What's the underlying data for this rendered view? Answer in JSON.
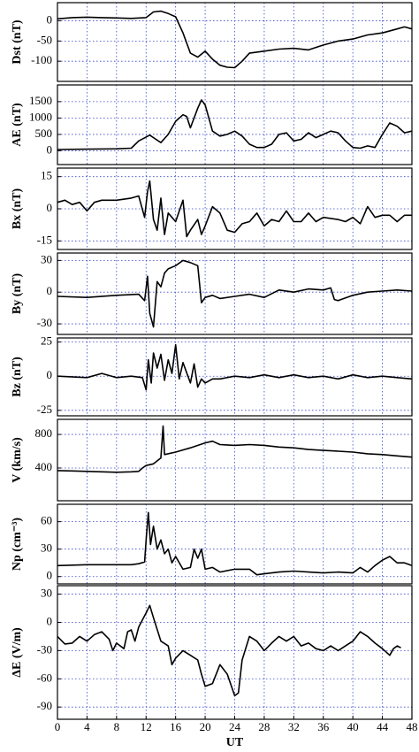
{
  "chart_data": [
    {
      "type": "line",
      "y_label": "Dst (nT)",
      "color": "#000000",
      "grid": true,
      "x": [
        0,
        2,
        4,
        6,
        8,
        10,
        12,
        13,
        14,
        15,
        16,
        17,
        18,
        19,
        20,
        21,
        22,
        23,
        24,
        25,
        26,
        28,
        30,
        32,
        34,
        36,
        38,
        40,
        42,
        44,
        46,
        47,
        48
      ],
      "values": [
        5,
        8,
        9,
        8,
        7,
        6,
        8,
        22,
        24,
        18,
        10,
        -30,
        -80,
        -90,
        -75,
        -95,
        -110,
        -115,
        -116,
        -100,
        -80,
        -75,
        -70,
        -68,
        -72,
        -60,
        -50,
        -45,
        -35,
        -30,
        -20,
        -15,
        -20
      ],
      "ylim": [
        -150,
        45
      ],
      "yticks": [
        0,
        -50,
        -100
      ]
    },
    {
      "type": "line",
      "y_label": "AE (nT)",
      "color": "#000000",
      "grid": true,
      "x": [
        0,
        4,
        8,
        10,
        11,
        12,
        12.5,
        13,
        14,
        15,
        16,
        17,
        17.5,
        18,
        19,
        19.5,
        20,
        21,
        22,
        23,
        24,
        25,
        26,
        27,
        28,
        29,
        30,
        31,
        32,
        33,
        34,
        35,
        36,
        37,
        38,
        39,
        40,
        41,
        42,
        43,
        44,
        45,
        46,
        47,
        48
      ],
      "values": [
        40,
        50,
        60,
        80,
        300,
        420,
        480,
        400,
        250,
        500,
        900,
        1100,
        1050,
        700,
        1300,
        1550,
        1400,
        600,
        450,
        500,
        600,
        450,
        200,
        100,
        100,
        200,
        500,
        550,
        300,
        350,
        550,
        400,
        500,
        600,
        550,
        300,
        100,
        80,
        150,
        100,
        500,
        850,
        750,
        550,
        600
      ],
      "ylim": [
        -420,
        2010
      ],
      "yticks": [
        0,
        500,
        1000,
        1500
      ]
    },
    {
      "type": "line",
      "y_label": "Bx (nT)",
      "color": "#000000",
      "grid": true,
      "x": [
        0,
        1,
        2,
        3,
        4,
        5,
        6,
        8,
        10,
        11,
        11.8,
        12.2,
        12.5,
        13,
        13.5,
        14,
        14.5,
        15,
        16,
        17,
        17.5,
        18,
        19,
        19.5,
        20,
        21,
        22,
        23,
        24,
        25,
        26,
        27,
        28,
        29,
        30,
        31,
        32,
        33,
        34,
        35,
        36,
        38,
        39,
        40,
        41,
        42,
        43,
        44,
        45,
        46,
        47,
        48
      ],
      "values": [
        3,
        4,
        2,
        3,
        -1,
        3,
        4,
        4,
        5,
        6,
        -4,
        8,
        13,
        -5,
        -10,
        5,
        -12,
        -2,
        -6,
        4,
        -13,
        -10,
        -5,
        -12,
        -8,
        1,
        -2,
        -10,
        -11,
        -7,
        -6,
        -2,
        -8,
        -5,
        -6,
        -1,
        -6,
        -6,
        -2,
        -6,
        -4,
        -5,
        -6,
        -4,
        -7,
        1,
        -4,
        -3,
        -3,
        -6,
        -3,
        -3
      ],
      "ylim": [
        -19,
        19
      ],
      "yticks": [
        15,
        0,
        -15
      ]
    },
    {
      "type": "line",
      "y_label": "By (nT)",
      "color": "#000000",
      "grid": true,
      "x": [
        0,
        4,
        8,
        11,
        11.8,
        12.2,
        12.5,
        13,
        13.5,
        14,
        14.5,
        15,
        16,
        17,
        18,
        19,
        19.5,
        20,
        21,
        22,
        24,
        26,
        28,
        30,
        32,
        34,
        36,
        37,
        37.5,
        38,
        40,
        42,
        44,
        46,
        48
      ],
      "values": [
        -4,
        -5,
        -3,
        -2,
        -8,
        15,
        -20,
        -33,
        10,
        5,
        18,
        22,
        25,
        30,
        28,
        25,
        -10,
        -5,
        -3,
        -6,
        -4,
        -2,
        -5,
        2,
        0,
        3,
        2,
        4,
        -7,
        -8,
        -3,
        0,
        1,
        2,
        1
      ],
      "ylim": [
        -40,
        37
      ],
      "yticks": [
        30,
        0,
        -30
      ]
    },
    {
      "type": "line",
      "y_label": "Bz (nT)",
      "color": "#000000",
      "grid": true,
      "x": [
        0,
        4,
        6,
        8,
        10,
        11.5,
        12,
        12.3,
        12.7,
        13,
        13.5,
        14,
        14.5,
        15,
        15.5,
        16,
        16.5,
        17,
        18,
        18.5,
        19,
        19.5,
        20,
        21,
        22,
        24,
        26,
        28,
        30,
        32,
        34,
        36,
        38,
        40,
        42,
        44,
        46,
        48
      ],
      "values": [
        0,
        -1,
        2,
        -1,
        0,
        -1,
        -10,
        12,
        -5,
        17,
        6,
        16,
        -3,
        12,
        2,
        23,
        -2,
        10,
        -5,
        9,
        -8,
        -2,
        -5,
        -2,
        -2,
        0,
        -1,
        1,
        -1,
        1,
        -1,
        0,
        -2,
        1,
        -1,
        0,
        -1,
        -2
      ],
      "ylim": [
        -29,
        28
      ],
      "yticks": [
        25,
        0,
        -25
      ]
    },
    {
      "type": "line",
      "y_label": "V (km/s)",
      "color": "#000000",
      "grid": true,
      "x": [
        0,
        2,
        4,
        6,
        8,
        10,
        11,
        11.5,
        12,
        13,
        14,
        14.3,
        14.5,
        16,
        18,
        20,
        21,
        22,
        24,
        26,
        28,
        30,
        32,
        34,
        36,
        38,
        40,
        42,
        44,
        46,
        48
      ],
      "values": [
        370,
        365,
        360,
        355,
        350,
        355,
        360,
        400,
        430,
        450,
        520,
        900,
        560,
        590,
        640,
        700,
        720,
        680,
        670,
        680,
        670,
        650,
        640,
        620,
        610,
        600,
        590,
        570,
        560,
        545,
        530
      ],
      "ylim": [
        10,
        980
      ],
      "yticks": [
        400,
        800
      ]
    },
    {
      "type": "line",
      "y_label": "Np (cm⁻³)",
      "color": "#000000",
      "grid": true,
      "x": [
        0,
        4,
        8,
        10,
        11,
        11.8,
        12,
        12.3,
        12.6,
        13,
        13.5,
        14,
        14.5,
        15,
        15.5,
        16,
        17,
        18,
        18.5,
        19,
        19.5,
        20,
        21,
        22,
        24,
        26,
        27,
        28,
        30,
        32,
        34,
        36,
        38,
        40,
        41,
        42,
        43,
        44,
        45,
        46,
        47,
        48
      ],
      "values": [
        12,
        13,
        13,
        13,
        14,
        16,
        40,
        70,
        35,
        55,
        30,
        40,
        25,
        30,
        15,
        22,
        8,
        10,
        30,
        20,
        30,
        8,
        10,
        5,
        8,
        8,
        2,
        3,
        5,
        6,
        5,
        4,
        5,
        4,
        10,
        5,
        12,
        18,
        22,
        15,
        15,
        12
      ],
      "ylim": [
        -8,
        79
      ],
      "yticks": [
        60,
        30,
        0
      ]
    },
    {
      "type": "line",
      "y_label": "ΔE (V/m)",
      "x_label": "UT",
      "color": "#000000",
      "grid": true,
      "x": [
        0,
        1,
        2,
        3,
        4,
        5,
        6,
        7,
        7.5,
        8,
        9,
        9.5,
        10,
        10.5,
        11,
        12,
        12.5,
        13,
        14,
        15,
        15.5,
        16,
        17,
        18,
        19,
        19.5,
        20,
        21,
        22,
        23,
        24,
        24.5,
        25,
        26,
        27,
        28,
        29,
        30,
        31,
        32,
        33,
        34,
        35,
        36,
        37,
        38,
        39,
        40,
        41,
        42,
        43,
        44,
        45,
        45.5,
        46,
        46.5
      ],
      "values": [
        -15,
        -23,
        -22,
        -15,
        -20,
        -13,
        -10,
        -18,
        -30,
        -22,
        -28,
        -10,
        -8,
        -20,
        -5,
        10,
        18,
        5,
        -20,
        -25,
        -45,
        -38,
        -30,
        -35,
        -40,
        -55,
        -68,
        -65,
        -45,
        -55,
        -78,
        -75,
        -40,
        -15,
        -20,
        -30,
        -22,
        -15,
        -20,
        -15,
        -25,
        -22,
        -28,
        -30,
        -25,
        -30,
        -25,
        -20,
        -10,
        -15,
        -22,
        -28,
        -35,
        -28,
        -25,
        -27
      ],
      "ylim": [
        -103,
        39
      ],
      "yticks": [
        30,
        0,
        -30,
        -60,
        -90
      ],
      "xlim": [
        0,
        48
      ],
      "xticks": [
        0,
        4,
        8,
        12,
        16,
        20,
        24,
        28,
        32,
        36,
        40,
        44,
        48
      ]
    }
  ]
}
